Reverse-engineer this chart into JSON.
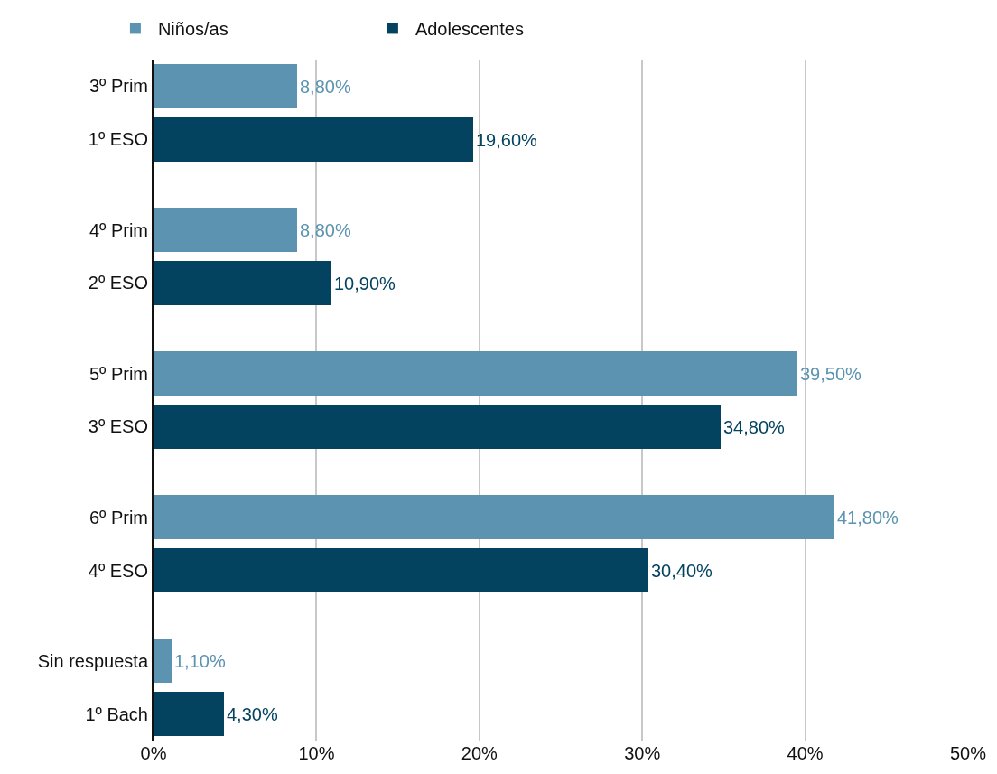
{
  "chart_data": {
    "type": "bar",
    "orientation": "horizontal",
    "categories": [
      "3º Prim",
      "1º ESO",
      "4º Prim",
      "2º ESO",
      "5º Prim",
      "3º ESO",
      "6º Prim",
      "4º ESO",
      "Sin respuesta",
      "1º Bach"
    ],
    "series": [
      {
        "name": "Niños/as",
        "color": "#5b93b1",
        "values": [
          8.8,
          null,
          8.8,
          null,
          39.5,
          null,
          41.8,
          null,
          1.1,
          null
        ],
        "value_labels": [
          "8,80%",
          null,
          "8,80%",
          null,
          "39,50%",
          null,
          "41,80%",
          null,
          "1,10%",
          null
        ]
      },
      {
        "name": "Adolescentes",
        "color": "#03435f",
        "values": [
          null,
          19.6,
          null,
          10.9,
          null,
          34.8,
          null,
          30.4,
          null,
          4.3
        ],
        "value_labels": [
          null,
          "19,60%",
          null,
          "10,90%",
          null,
          "34,80%",
          null,
          "30,40%",
          null,
          "4,30%"
        ]
      }
    ],
    "xlim": [
      0,
      50
    ],
    "xticks": [
      {
        "value": 0,
        "label": "0%"
      },
      {
        "value": 10,
        "label": "10%"
      },
      {
        "value": 20,
        "label": "20%"
      },
      {
        "value": 30,
        "label": "30%"
      },
      {
        "value": 40,
        "label": "40%"
      },
      {
        "value": 50,
        "label": "50%"
      }
    ],
    "grid": "x",
    "legend": "top left"
  }
}
